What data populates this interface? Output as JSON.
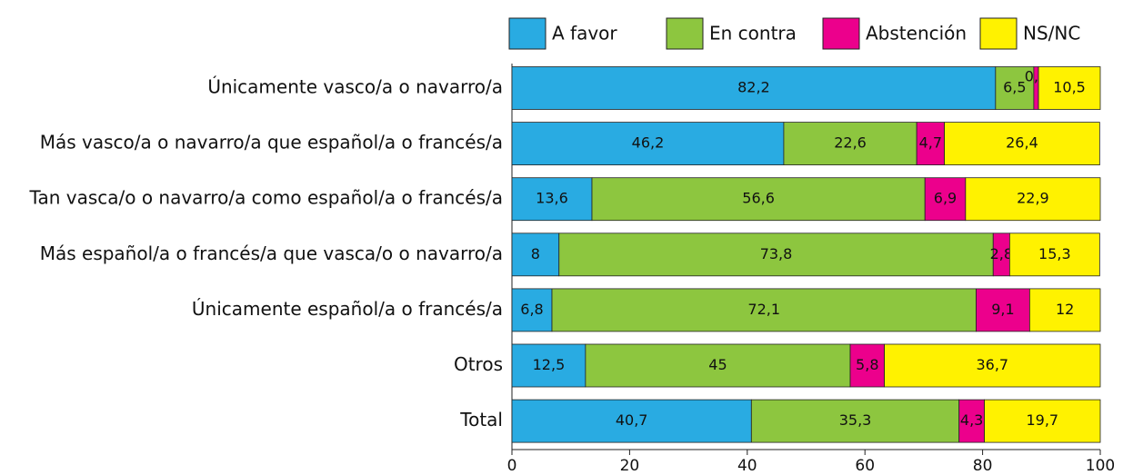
{
  "chart_data": {
    "type": "stacked_bar_horizontal",
    "categories": [
      "Únicamente vasco/a o navarro/a",
      "Más vasco/a o navarro/a que español/a o francés/a",
      "Tan vasca/o o navarro/a como español/a o francés/a",
      "Más español/a o francés/a que vasca/o o navarro/a",
      "Únicamente español/a o francés/a",
      "Otros",
      "Total"
    ],
    "series": [
      {
        "name": "A favor",
        "color": "#29abe2",
        "values": [
          82.2,
          46.2,
          13.6,
          8,
          6.8,
          12.5,
          40.7
        ],
        "value_labels": [
          "82,2",
          "46,2",
          "13,6",
          "8",
          "6,8",
          "12,5",
          "40,7"
        ]
      },
      {
        "name": "En contra",
        "color": "#8dc63f",
        "values": [
          6.5,
          22.6,
          56.6,
          73.8,
          72.1,
          45,
          35.3
        ],
        "value_labels": [
          "6,5",
          "22,6",
          "56,6",
          "73,8",
          "72,1",
          "45",
          "35,3"
        ]
      },
      {
        "name": "Abstención",
        "color": "#ec008c",
        "values": [
          0.8,
          4.7,
          6.9,
          2.8,
          9.1,
          5.8,
          4.3
        ],
        "value_labels": [
          "0,8",
          "4,7",
          "6,9",
          "2,8",
          "9,1",
          "5,8",
          "4,3"
        ]
      },
      {
        "name": "NS/NC",
        "color": "#fff200",
        "values": [
          10.5,
          26.4,
          22.9,
          15.3,
          12,
          36.7,
          19.7
        ],
        "value_labels": [
          "10,5",
          "26,4",
          "22,9",
          "15,3",
          "12",
          "36,7",
          "19,7"
        ]
      }
    ],
    "xlim": [
      0,
      100
    ],
    "xticks": [
      0,
      20,
      40,
      60,
      80,
      100
    ],
    "legend": "top"
  }
}
